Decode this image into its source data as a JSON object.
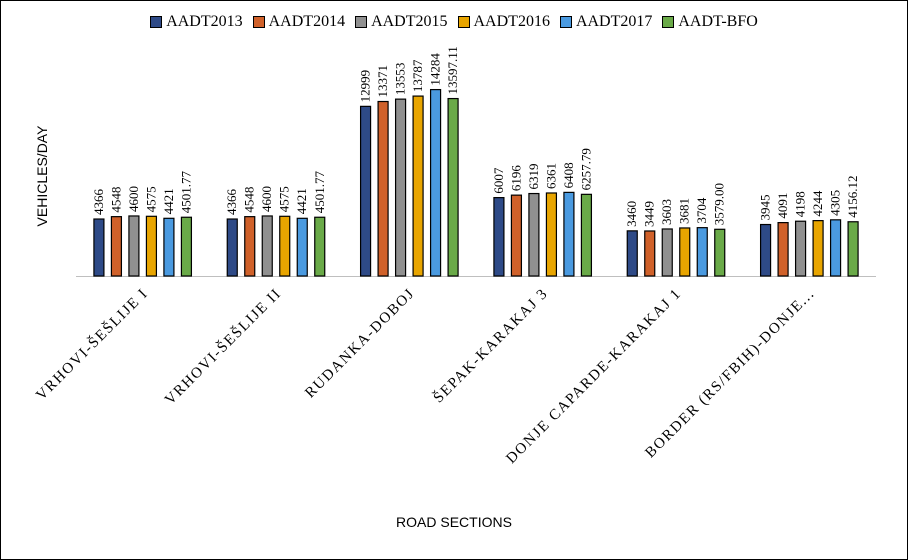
{
  "chart_data": {
    "type": "bar",
    "ylabel": "VEHICLES/DAY",
    "xlabel": "ROAD SECTIONS",
    "ylim": [
      0,
      16000
    ],
    "grid": false,
    "legend_position": "top",
    "categories": [
      "VRHOVI-ŠEŠLIJE I",
      "VRHOVI-ŠEŠLIJE II",
      "RUDANKA-DOBOJ",
      "ŠEPAK-KARAKAJ 3",
      "DONJE CAPARDE-KARAKAJ 1",
      "BORDER (RS/FBIH)-DONJE..."
    ],
    "series": [
      {
        "name": "AADT2013",
        "color": "#2E4A87",
        "values": [
          4366,
          4366,
          12999,
          6007,
          3460,
          3945
        ],
        "labels": [
          "4366",
          "4366",
          "12999",
          "6007",
          "3460",
          "3945"
        ]
      },
      {
        "name": "AADT2014",
        "color": "#D0612A",
        "values": [
          4548,
          4548,
          13371,
          6196,
          3449,
          4091
        ],
        "labels": [
          "4548",
          "4548",
          "13371",
          "6196",
          "3449",
          "4091"
        ]
      },
      {
        "name": "AADT2015",
        "color": "#909090",
        "values": [
          4600,
          4600,
          13553,
          6319,
          3603,
          4198
        ],
        "labels": [
          "4600",
          "4600",
          "13553",
          "6319",
          "3603",
          "4198"
        ]
      },
      {
        "name": "AADT2016",
        "color": "#E8A500",
        "values": [
          4575,
          4575,
          13787,
          6361,
          3681,
          4244
        ],
        "labels": [
          "4575",
          "4575",
          "13787",
          "6361",
          "3681",
          "4244"
        ]
      },
      {
        "name": "AADT2017",
        "color": "#4A9AE0",
        "values": [
          4421,
          4421,
          14284,
          6408,
          3704,
          4305
        ],
        "labels": [
          "4421",
          "4421",
          "14284",
          "6408",
          "3704",
          "4305"
        ]
      },
      {
        "name": "AADT-BFO",
        "color": "#6AAA48",
        "values": [
          4501.77,
          4501.77,
          13597.11,
          6257.79,
          3579.0,
          4156.12
        ],
        "labels": [
          "4501.77",
          "4501.77",
          "13597.11",
          "6257.79",
          "3579.00",
          "4156.12"
        ]
      }
    ]
  }
}
